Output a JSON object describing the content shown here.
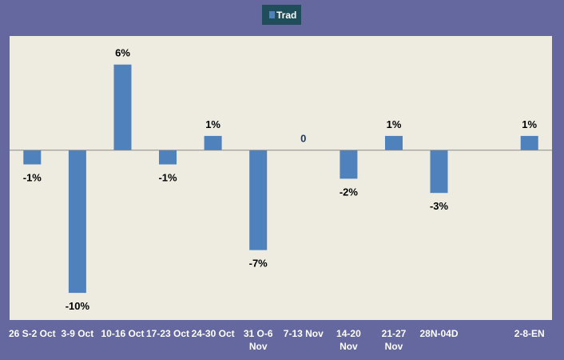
{
  "chart_data": {
    "type": "bar",
    "categories": [
      [
        "26 S-2 Oct"
      ],
      [
        "3-9 Oct"
      ],
      [
        "10-16 Oct"
      ],
      [
        "17-23 Oct"
      ],
      [
        "24-30 Oct"
      ],
      [
        "31 O-6",
        "Nov"
      ],
      [
        "7-13 Nov"
      ],
      [
        "14-20",
        "Nov"
      ],
      [
        "21-27",
        "Nov"
      ],
      [
        "28N-04D"
      ],
      [
        ""
      ],
      [
        "2-8-EN"
      ]
    ],
    "series": [
      {
        "name": "Trad",
        "values": [
          -0.01,
          -0.1,
          0.06,
          -0.01,
          0.01,
          -0.07,
          0,
          -0.02,
          0.01,
          -0.03,
          null,
          0.01
        ],
        "labels": [
          "-1%",
          "-10%",
          "6%",
          "-1%",
          "1%",
          "-7%",
          "0",
          "-2%",
          "1%",
          "-3%",
          "",
          "1%"
        ]
      }
    ],
    "ylim": [
      -0.119,
      0.08
    ],
    "legend_position": "top-center",
    "grid": false,
    "colors": {
      "background": "#64689e",
      "plot_area": "#eeece1",
      "bar": "#4f81bd",
      "legend_box": "#1f4e5a",
      "zero_label": "#1f3864"
    }
  }
}
